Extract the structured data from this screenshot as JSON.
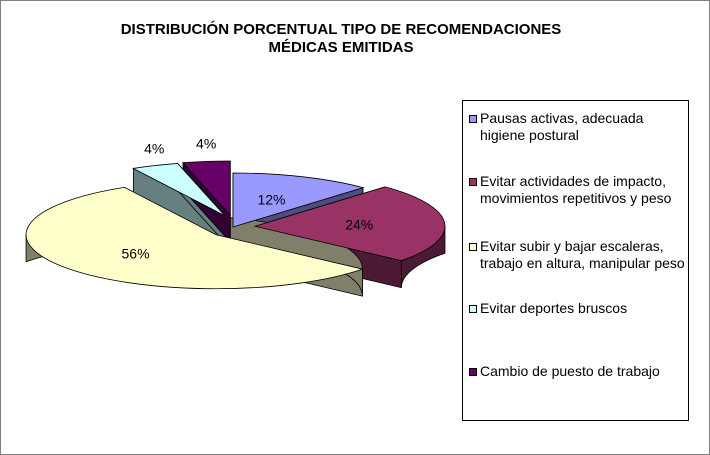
{
  "chart_data": {
    "type": "pie",
    "title_lines": [
      "DISTRIBUCIÓN PORCENTUAL TIPO DE RECOMENDACIONES",
      "MÉDICAS EMITIDAS"
    ],
    "legend_position": "right",
    "slices": [
      {
        "label": "Pausas activas, adecuada higiene postural",
        "value": 12,
        "data_label": "12%",
        "color": "#9999ff",
        "side_color": "#4d4d80",
        "exploded": false
      },
      {
        "label": "Evitar actividades de impacto, movimientos repetitivos y peso",
        "value": 24,
        "data_label": "24%",
        "color": "#993366",
        "side_color": "#4d1a33",
        "exploded": true
      },
      {
        "label": "Evitar subir y bajar escaleras, trabajo en altura, manipular peso",
        "value": 56,
        "data_label": "56%",
        "color": "#ffffcc",
        "side_color": "#80806a",
        "exploded": true
      },
      {
        "label": "Evitar deportes bruscos",
        "value": 4,
        "data_label": "4%",
        "color": "#ccffff",
        "side_color": "#668080",
        "exploded": true
      },
      {
        "label": "Cambio de puesto de trabajo",
        "value": 4,
        "data_label": "4%",
        "color": "#660066",
        "side_color": "#330033",
        "exploded": true
      }
    ]
  }
}
